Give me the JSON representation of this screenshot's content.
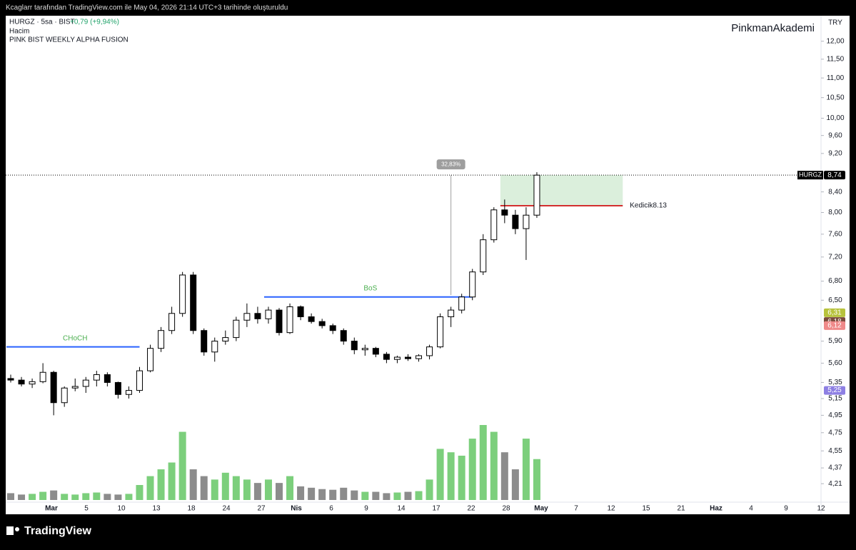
{
  "header": {
    "watermark": "Kcaglarr tarafından TradingView.com ile May 04, 2026 21:14 UTC+3 tarihinde oluşturuldu",
    "symbol": "HURGZ · 5sa · BIST",
    "change": "+0,79 (+9,94%)",
    "indicators": [
      "Hacim",
      "PINK BIST WEEKLY ALPHA FUSION"
    ],
    "author": "PinkmanAkademi",
    "currency": "TRY"
  },
  "chart_data": {
    "type": "candlestick",
    "log_scale": true,
    "ylim": [
      4.03,
      12.79
    ],
    "yticks": [
      {
        "value": 12,
        "label": "12,00"
      },
      {
        "value": 11.5,
        "label": "11,50"
      },
      {
        "value": 11,
        "label": "11,00"
      },
      {
        "value": 10.5,
        "label": "10,50"
      },
      {
        "value": 10,
        "label": "10,00"
      },
      {
        "value": 9.6,
        "label": "9,60"
      },
      {
        "value": 9.2,
        "label": "9,20"
      },
      {
        "value": 8.4,
        "label": "8,40"
      },
      {
        "value": 8,
        "label": "8,00"
      },
      {
        "value": 7.6,
        "label": "7,60"
      },
      {
        "value": 7.2,
        "label": "7,20"
      },
      {
        "value": 6.8,
        "label": "6,80"
      },
      {
        "value": 6.5,
        "label": "6,50"
      },
      {
        "value": 5.9,
        "label": "5,90"
      },
      {
        "value": 5.6,
        "label": "5,60"
      },
      {
        "value": 5.35,
        "label": "5,35"
      },
      {
        "value": 5.15,
        "label": "5,15"
      },
      {
        "value": 4.95,
        "label": "4,95"
      },
      {
        "value": 4.75,
        "label": "4,75"
      },
      {
        "value": 4.55,
        "label": "4,55"
      },
      {
        "value": 4.37,
        "label": "4,37"
      },
      {
        "value": 4.21,
        "label": "4,21"
      }
    ],
    "x_labels": [
      "Mar",
      "5",
      "10",
      "13",
      "18",
      "24",
      "27",
      "Nis",
      "6",
      "9",
      "14",
      "17",
      "22",
      "28",
      "May",
      "7",
      "12",
      "15",
      "21",
      "Haz",
      "4",
      "9",
      "12"
    ],
    "open": [
      5.4,
      5.38,
      5.33,
      5.36,
      5.48,
      5.1,
      5.28,
      5.3,
      5.38,
      5.45,
      5.35,
      5.2,
      5.25,
      5.5,
      5.8,
      6.05,
      6.3,
      6.9,
      6.05,
      5.75,
      5.9,
      5.95,
      6.2,
      6.3,
      6.22,
      6.35,
      6.02,
      6.4,
      6.25,
      6.18,
      6.12,
      6.05,
      5.9,
      5.78,
      5.8,
      5.72,
      5.65,
      5.68,
      5.66,
      5.7,
      5.82,
      6.25,
      6.35,
      6.55,
      6.95,
      7.5,
      8.05,
      7.95,
      7.7,
      7.95
    ],
    "high": [
      5.45,
      5.42,
      5.4,
      5.6,
      5.5,
      5.3,
      5.4,
      5.42,
      5.5,
      5.48,
      5.36,
      5.3,
      5.55,
      5.85,
      6.1,
      6.4,
      6.95,
      6.95,
      6.08,
      5.95,
      6.05,
      6.25,
      6.45,
      6.4,
      6.4,
      6.38,
      6.45,
      6.42,
      6.3,
      6.22,
      6.15,
      6.08,
      5.95,
      5.85,
      5.82,
      5.75,
      5.7,
      5.72,
      5.72,
      5.85,
      6.3,
      6.4,
      6.6,
      7.0,
      7.6,
      8.1,
      8.25,
      8.05,
      8.1,
      8.8
    ],
    "low": [
      5.35,
      5.3,
      5.28,
      5.34,
      4.95,
      5.05,
      5.24,
      5.22,
      5.3,
      5.3,
      5.15,
      5.15,
      5.22,
      5.48,
      5.75,
      6.0,
      6.25,
      6.0,
      5.7,
      5.62,
      5.85,
      5.9,
      6.1,
      6.15,
      6.15,
      5.98,
      6.0,
      6.2,
      6.15,
      6.08,
      6.0,
      5.85,
      5.72,
      5.7,
      5.68,
      5.6,
      5.6,
      5.63,
      5.62,
      5.65,
      5.8,
      6.1,
      6.3,
      6.5,
      6.9,
      7.45,
      7.8,
      7.6,
      7.15,
      7.9
    ],
    "close": [
      5.38,
      5.33,
      5.36,
      5.48,
      5.1,
      5.28,
      5.3,
      5.38,
      5.45,
      5.35,
      5.2,
      5.25,
      5.5,
      5.8,
      6.05,
      6.3,
      6.9,
      6.05,
      5.75,
      5.9,
      5.95,
      6.2,
      6.3,
      6.22,
      6.35,
      6.02,
      6.4,
      6.25,
      6.18,
      6.12,
      6.05,
      5.9,
      5.78,
      5.8,
      5.72,
      5.65,
      5.68,
      5.66,
      5.7,
      5.82,
      6.25,
      6.35,
      6.55,
      6.95,
      7.5,
      8.05,
      7.95,
      7.7,
      7.95,
      8.74
    ],
    "volume": [
      10,
      8,
      9,
      12,
      14,
      9,
      8,
      10,
      11,
      9,
      8,
      9,
      22,
      35,
      45,
      55,
      100,
      45,
      35,
      30,
      40,
      35,
      30,
      25,
      30,
      25,
      35,
      20,
      18,
      16,
      15,
      18,
      14,
      12,
      12,
      10,
      11,
      12,
      13,
      30,
      75,
      70,
      65,
      90,
      110,
      100,
      70,
      45,
      90,
      60
    ],
    "up_color": "#ffffff",
    "down_color": "#000000",
    "volume_up_color": "#7ccf7c",
    "volume_down_color": "#8c8c8c",
    "symbol_tag": "HURGZ",
    "price_tags": [
      {
        "value": 8.74,
        "label": "8,74",
        "color": "#000000"
      },
      {
        "value": 6.31,
        "label": "6,31",
        "color": "#b7c23c"
      },
      {
        "value": 6.18,
        "label": "6,18",
        "color": "#7a4a3c"
      },
      {
        "value": 6.12,
        "label": "6,12",
        "color": "#ef8a8a"
      },
      {
        "value": 5.25,
        "label": "5,25",
        "color": "#8d7fe3"
      }
    ],
    "annotations": [
      {
        "label": "BoS",
        "value": 6.55,
        "start": 24,
        "end": 43,
        "color": "#2962ff"
      },
      {
        "label": "CHoCH",
        "value": 5.82,
        "start": 0,
        "end": 12,
        "color": "#2962ff"
      },
      {
        "label": "Kedicik8.13",
        "value": 8.13,
        "start": 46,
        "end": 57,
        "color": "#d32f2f"
      }
    ],
    "measure": {
      "label": "32,83%",
      "from": 6.58,
      "to": 8.74,
      "at": 41
    }
  },
  "footer": {
    "brand": "TradingView"
  }
}
